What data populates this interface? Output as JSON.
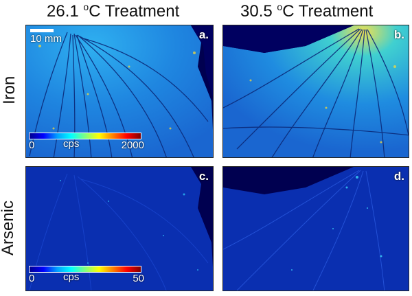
{
  "columns": [
    {
      "title_prefix": "26.1 ",
      "title_sup": "o",
      "title_suffix": "C Treatment"
    },
    {
      "title_prefix": "30.5 ",
      "title_sup": "o",
      "title_suffix": "C Treatment"
    }
  ],
  "rows": [
    {
      "label": "Iron"
    },
    {
      "label": "Arsenic"
    }
  ],
  "panels": {
    "a": {
      "letter": "a."
    },
    "b": {
      "letter": "b."
    },
    "c": {
      "letter": "c."
    },
    "d": {
      "letter": "d."
    }
  },
  "scalebar": {
    "label": "10 mm"
  },
  "colorbars": {
    "iron": {
      "min": "0",
      "unit": "cps",
      "max": "2000"
    },
    "arsenic": {
      "min": "0",
      "unit": "cps",
      "max": "50"
    }
  },
  "colors": {
    "iron_bg": "#1f78d6",
    "arsenic_bg": "#0a2fb0",
    "background_dark": "#000050"
  }
}
